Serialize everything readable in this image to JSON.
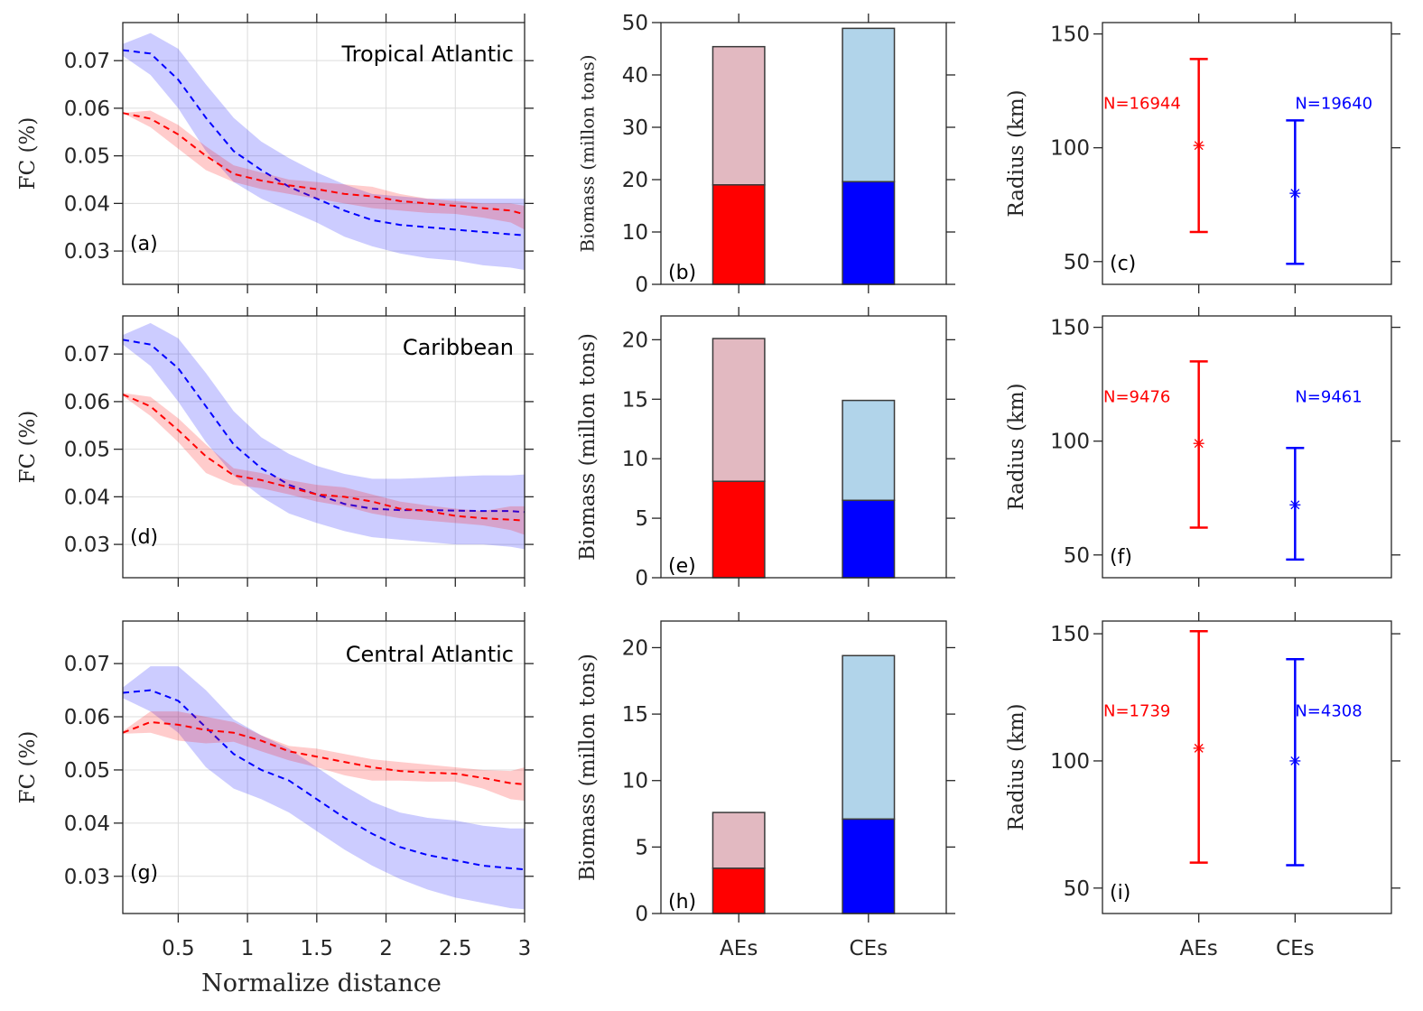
{
  "figure": {
    "xlabel": "Normalize distance"
  },
  "chart_data": [
    {
      "panel": "(a)",
      "type": "area",
      "title": "Tropical Atlantic",
      "ylabel": "FC (%)",
      "xlim": [
        0.1,
        3
      ],
      "ylim": [
        0.023,
        0.078
      ],
      "grid": true,
      "xticks": [
        0.5,
        1,
        1.5,
        2,
        2.5,
        3
      ],
      "yticks": [
        "0.03",
        "0.04",
        "0.05",
        "0.06",
        "0.07"
      ],
      "x": [
        0.1,
        0.3,
        0.5,
        0.7,
        0.9,
        1.1,
        1.3,
        1.5,
        1.7,
        1.9,
        2.1,
        2.3,
        2.5,
        2.7,
        2.9,
        3.0
      ],
      "series": [
        {
          "color": "#0000ff",
          "mean": [
            0.0722,
            0.0715,
            0.066,
            0.058,
            0.051,
            0.047,
            0.0435,
            0.041,
            0.0385,
            0.0365,
            0.0355,
            0.035,
            0.0345,
            0.034,
            0.0335,
            0.0333
          ],
          "upper": [
            0.0735,
            0.0758,
            0.0725,
            0.065,
            0.058,
            0.053,
            0.0495,
            0.0465,
            0.044,
            0.042,
            0.0415,
            0.041,
            0.041,
            0.041,
            0.041,
            0.041
          ],
          "lower": [
            0.071,
            0.067,
            0.06,
            0.051,
            0.0445,
            0.041,
            0.0385,
            0.036,
            0.033,
            0.031,
            0.0295,
            0.0285,
            0.028,
            0.027,
            0.0265,
            0.026
          ]
        },
        {
          "color": "#ff0000",
          "mean": [
            0.059,
            0.0578,
            0.0545,
            0.05,
            0.0462,
            0.0448,
            0.0438,
            0.043,
            0.042,
            0.0415,
            0.0405,
            0.04,
            0.0395,
            0.039,
            0.0385,
            0.0377
          ],
          "upper": [
            0.059,
            0.0595,
            0.0565,
            0.052,
            0.048,
            0.0465,
            0.045,
            0.0445,
            0.044,
            0.0435,
            0.042,
            0.041,
            0.0405,
            0.04,
            0.04,
            0.0395
          ],
          "lower": [
            0.059,
            0.056,
            0.0515,
            0.047,
            0.0445,
            0.043,
            0.042,
            0.041,
            0.04,
            0.039,
            0.0385,
            0.038,
            0.0378,
            0.037,
            0.036,
            0.0345
          ]
        }
      ]
    },
    {
      "panel": "(b)",
      "type": "bar",
      "ylabel": "Biomass (millon tons)",
      "xlim": [
        0.4,
        2.6
      ],
      "ylim": [
        0,
        50
      ],
      "xticks": [
        1,
        2
      ],
      "yticks": [
        "0",
        "10",
        "20",
        "30",
        "40",
        "50"
      ],
      "bars": [
        {
          "lower": 19.0,
          "total": 45.4,
          "lower_color": "#ff0000",
          "upper_color": "#e2b9c1"
        },
        {
          "lower": 19.6,
          "total": 48.9,
          "lower_color": "#0000ff",
          "upper_color": "#b1d4ea"
        }
      ]
    },
    {
      "panel": "(c)",
      "type": "errorbar",
      "ylabel": "Radius (km)",
      "xlim": [
        0,
        3
      ],
      "ylim": [
        40,
        155
      ],
      "xticks": [
        1,
        2
      ],
      "yticks": [
        "50",
        "100",
        "150"
      ],
      "points": [
        {
          "mean": 101,
          "lower": 63,
          "upper": 139,
          "color": "#ff0000",
          "n_label": "N=16944"
        },
        {
          "mean": 80,
          "lower": 49,
          "upper": 112,
          "color": "#0000ff",
          "n_label": "N=19640"
        }
      ]
    },
    {
      "panel": "(d)",
      "type": "area",
      "title": "Caribbean",
      "ylabel": "FC (%)",
      "xlim": [
        0.1,
        3
      ],
      "ylim": [
        0.023,
        0.078
      ],
      "grid": true,
      "xticks": [
        0.5,
        1,
        1.5,
        2,
        2.5,
        3
      ],
      "yticks": [
        "0.03",
        "0.04",
        "0.05",
        "0.06",
        "0.07"
      ],
      "x": [
        0.1,
        0.3,
        0.5,
        0.7,
        0.9,
        1.1,
        1.3,
        1.5,
        1.7,
        1.9,
        2.1,
        2.3,
        2.5,
        2.7,
        2.9,
        3.0
      ],
      "series": [
        {
          "color": "#0000ff",
          "mean": [
            0.073,
            0.072,
            0.067,
            0.059,
            0.051,
            0.046,
            0.0425,
            0.0405,
            0.0385,
            0.0375,
            0.0372,
            0.0372,
            0.0371,
            0.037,
            0.037,
            0.0368
          ],
          "upper": [
            0.074,
            0.0765,
            0.0733,
            0.066,
            0.058,
            0.0525,
            0.049,
            0.0465,
            0.0448,
            0.0438,
            0.0438,
            0.044,
            0.0443,
            0.0445,
            0.0445,
            0.0447
          ],
          "lower": [
            0.072,
            0.0675,
            0.06,
            0.0515,
            0.0445,
            0.04,
            0.0365,
            0.0345,
            0.0328,
            0.0315,
            0.031,
            0.0305,
            0.03,
            0.03,
            0.0295,
            0.029
          ]
        },
        {
          "color": "#ff0000",
          "mean": [
            0.0615,
            0.059,
            0.054,
            0.0485,
            0.0445,
            0.0435,
            0.042,
            0.0405,
            0.04,
            0.039,
            0.0375,
            0.037,
            0.036,
            0.0355,
            0.0352,
            0.035
          ],
          "upper": [
            0.0618,
            0.061,
            0.0565,
            0.051,
            0.046,
            0.045,
            0.0435,
            0.0425,
            0.042,
            0.0405,
            0.039,
            0.0382,
            0.0375,
            0.037,
            0.038,
            0.038
          ],
          "lower": [
            0.0612,
            0.057,
            0.0515,
            0.045,
            0.0425,
            0.0418,
            0.0405,
            0.039,
            0.038,
            0.0365,
            0.0355,
            0.035,
            0.0345,
            0.034,
            0.033,
            0.032
          ]
        }
      ]
    },
    {
      "panel": "(e)",
      "type": "bar",
      "ylabel": "Biomass (millon tons)",
      "xlim": [
        0.4,
        2.6
      ],
      "ylim": [
        0,
        22
      ],
      "xticks": [
        1,
        2
      ],
      "yticks": [
        "0",
        "5",
        "10",
        "15",
        "20"
      ],
      "bars": [
        {
          "lower": 8.1,
          "total": 20.1,
          "lower_color": "#ff0000",
          "upper_color": "#e2b9c1"
        },
        {
          "lower": 6.5,
          "total": 14.9,
          "lower_color": "#0000ff",
          "upper_color": "#b1d4ea"
        }
      ]
    },
    {
      "panel": "(f)",
      "type": "errorbar",
      "ylabel": "Radius (km)",
      "xlim": [
        0,
        3
      ],
      "ylim": [
        40,
        155
      ],
      "xticks": [
        1,
        2
      ],
      "yticks": [
        "50",
        "100",
        "150"
      ],
      "points": [
        {
          "mean": 99,
          "lower": 62,
          "upper": 135,
          "color": "#ff0000",
          "n_label": "N=9476"
        },
        {
          "mean": 72,
          "lower": 48,
          "upper": 97,
          "color": "#0000ff",
          "n_label": "N=9461"
        }
      ]
    },
    {
      "panel": "(g)",
      "type": "area",
      "title": "Central Atlantic",
      "ylabel": "FC (%)",
      "xlabel": "Normalize distance",
      "xlim": [
        0.1,
        3
      ],
      "ylim": [
        0.023,
        0.078
      ],
      "grid": true,
      "xticks": [
        0.5,
        1,
        1.5,
        2,
        2.5,
        3
      ],
      "xtick_labels": [
        "0.5",
        "1",
        "1.5",
        "2",
        "2.5",
        "3"
      ],
      "yticks": [
        "0.03",
        "0.04",
        "0.05",
        "0.06",
        "0.07"
      ],
      "x": [
        0.1,
        0.3,
        0.5,
        0.7,
        0.9,
        1.1,
        1.3,
        1.5,
        1.7,
        1.9,
        2.1,
        2.3,
        2.5,
        2.7,
        2.9,
        3.0
      ],
      "series": [
        {
          "color": "#0000ff",
          "mean": [
            0.0645,
            0.065,
            0.063,
            0.058,
            0.053,
            0.05,
            0.048,
            0.0445,
            0.041,
            0.038,
            0.0355,
            0.034,
            0.033,
            0.032,
            0.0315,
            0.0313
          ],
          "upper": [
            0.0655,
            0.0695,
            0.0695,
            0.065,
            0.0595,
            0.0565,
            0.054,
            0.0505,
            0.047,
            0.044,
            0.042,
            0.041,
            0.0405,
            0.0395,
            0.039,
            0.039
          ],
          "lower": [
            0.0635,
            0.061,
            0.057,
            0.0505,
            0.0465,
            0.0445,
            0.042,
            0.0385,
            0.035,
            0.032,
            0.0295,
            0.0275,
            0.026,
            0.025,
            0.024,
            0.0238
          ]
        },
        {
          "color": "#ff0000",
          "mean": [
            0.057,
            0.059,
            0.0585,
            0.0575,
            0.057,
            0.0555,
            0.0535,
            0.0525,
            0.0515,
            0.0505,
            0.0498,
            0.0495,
            0.0493,
            0.0485,
            0.0475,
            0.0473
          ],
          "upper": [
            0.0573,
            0.061,
            0.061,
            0.06,
            0.059,
            0.0565,
            0.0545,
            0.054,
            0.053,
            0.052,
            0.0515,
            0.051,
            0.0505,
            0.05,
            0.0498,
            0.0505
          ],
          "lower": [
            0.0568,
            0.057,
            0.0555,
            0.055,
            0.0553,
            0.0535,
            0.0518,
            0.0505,
            0.049,
            0.048,
            0.048,
            0.0478,
            0.0478,
            0.0465,
            0.0445,
            0.0442
          ]
        }
      ]
    },
    {
      "panel": "(h)",
      "type": "bar",
      "ylabel": "Biomass (millon tons)",
      "xlim": [
        0.4,
        2.6
      ],
      "ylim": [
        0,
        22
      ],
      "xticks": [
        1,
        2
      ],
      "xtick_labels": [
        "AEs",
        "CEs"
      ],
      "yticks": [
        "0",
        "5",
        "10",
        "15",
        "20"
      ],
      "bars": [
        {
          "lower": 3.4,
          "total": 7.6,
          "lower_color": "#ff0000",
          "upper_color": "#e2b9c1"
        },
        {
          "lower": 7.1,
          "total": 19.4,
          "lower_color": "#0000ff",
          "upper_color": "#b1d4ea"
        }
      ]
    },
    {
      "panel": "(i)",
      "type": "errorbar",
      "ylabel": "Radius (km)",
      "xlim": [
        0,
        3
      ],
      "ylim": [
        40,
        155
      ],
      "xticks": [
        1,
        2
      ],
      "xtick_labels": [
        "AEs",
        "CEs"
      ],
      "yticks": [
        "50",
        "100",
        "150"
      ],
      "points": [
        {
          "mean": 105,
          "lower": 60,
          "upper": 151,
          "color": "#ff0000",
          "n_label": "N=1739"
        },
        {
          "mean": 100,
          "lower": 59,
          "upper": 140,
          "color": "#0000ff",
          "n_label": "N=4308"
        }
      ]
    }
  ]
}
